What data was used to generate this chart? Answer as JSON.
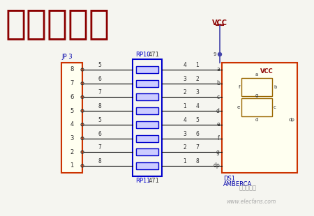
{
  "title": "静态数码管",
  "title_color": "#8b0000",
  "title_fontsize": 36,
  "bg_color": "#f5f5f0",
  "vcc_label": "VCC",
  "vcc_color": "#8b0000",
  "blue_line_color": "#4444aa",
  "jp3_label": "JP 3",
  "jp3_color": "#cc3300",
  "jp3_fill": "#fffff0",
  "rp10_label": "RP10",
  "rp11_label": "RP11",
  "rp_color": "#0000cc",
  "res_color": "#0000cc",
  "ds1_label": "DS1",
  "ds1_sub": "AMBERCA",
  "ds1_color": "#0000aa",
  "watermark": "www.elecfans.com",
  "wire_color": "#000000",
  "connector_border": "#cc3300",
  "connector_fill": "#fffff0",
  "471_label": "471",
  "seg_labels_left": [
    "a",
    "b",
    "c",
    "d",
    "e",
    "f",
    "g",
    "dp"
  ],
  "jp3_pins": [
    8,
    7,
    6,
    5,
    4,
    3,
    2,
    1
  ],
  "left_nums": [
    5,
    6,
    7,
    8,
    5,
    6,
    7,
    8
  ],
  "right_nums_mid": [
    4,
    3,
    2,
    1,
    4,
    3,
    2,
    1
  ],
  "right_pin_nums": [
    1,
    2,
    3,
    4,
    5,
    6,
    7,
    8
  ]
}
